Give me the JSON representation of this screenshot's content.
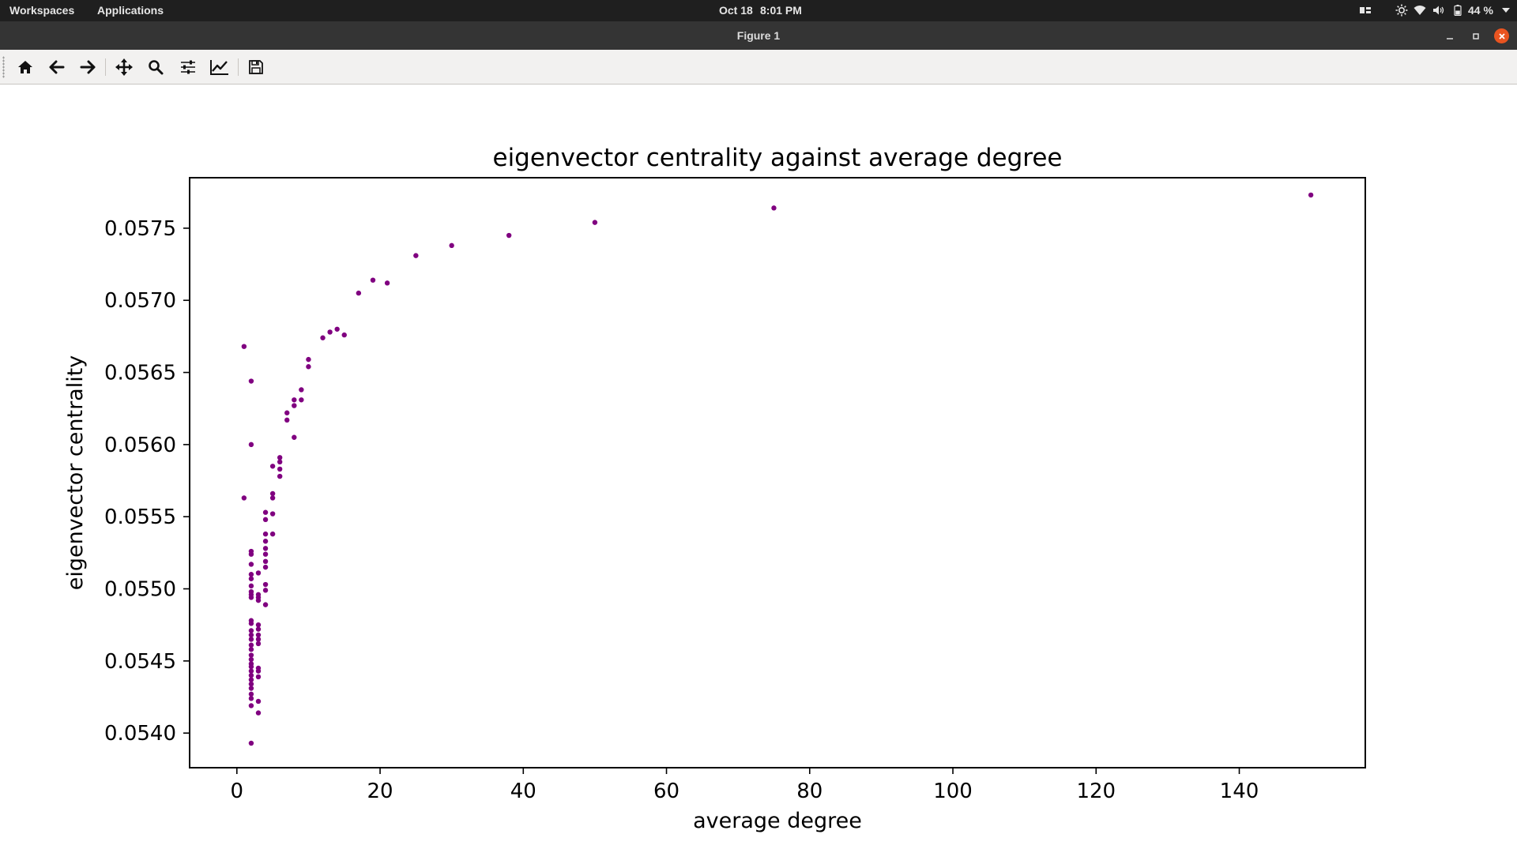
{
  "system_bar": {
    "workspaces": "Workspaces",
    "applications": "Applications",
    "date": "Oct 18",
    "time": "8:01 PM",
    "battery": "44 %",
    "tray_icons": [
      "layout-icon",
      "brightness-icon",
      "wifi-icon",
      "volume-icon",
      "battery-icon",
      "dropdown-icon"
    ]
  },
  "window": {
    "title": "Figure 1",
    "controls": [
      "minimize-icon",
      "maximize-icon",
      "close-icon"
    ]
  },
  "toolbar": {
    "buttons": [
      "home-icon",
      "back-icon",
      "forward-icon",
      "pan-icon",
      "zoom-icon",
      "configure-subplots-icon",
      "edit-axis-icon",
      "save-icon"
    ]
  },
  "colors": {
    "marker": "#800080",
    "system_bar": "#1f1f1f",
    "title_bar": "#343434",
    "close_button": "#e95420"
  },
  "chart_data": {
    "type": "scatter",
    "title": "eigenvector centrality against average degree",
    "xlabel": "average degree",
    "ylabel": "eigenvector centrality",
    "xlim": [
      -6.6,
      157.6
    ],
    "ylim": [
      0.05376,
      0.05785
    ],
    "xticks": [
      0,
      20,
      40,
      60,
      80,
      100,
      120,
      140
    ],
    "yticks": [
      0.054,
      0.0545,
      0.055,
      0.0555,
      0.056,
      0.0565,
      0.057,
      0.0575
    ],
    "xtick_labels": [
      "0",
      "20",
      "40",
      "60",
      "80",
      "100",
      "120",
      "140"
    ],
    "ytick_labels": [
      "0.0540",
      "0.0545",
      "0.0550",
      "0.0555",
      "0.0560",
      "0.0565",
      "0.0570",
      "0.0575"
    ],
    "grid": false,
    "legend": "none",
    "series": [
      {
        "color": "#800080",
        "points": [
          [
            1,
            0.05668
          ],
          [
            1,
            0.05563
          ],
          [
            2,
            0.05644
          ],
          [
            2,
            0.056
          ],
          [
            2,
            0.05526
          ],
          [
            2,
            0.05524
          ],
          [
            2,
            0.05517
          ],
          [
            2,
            0.0551
          ],
          [
            2,
            0.05507
          ],
          [
            2,
            0.05502
          ],
          [
            2,
            0.05498
          ],
          [
            2,
            0.05496
          ],
          [
            2,
            0.05494
          ],
          [
            2,
            0.05478
          ],
          [
            2,
            0.05476
          ],
          [
            2,
            0.05471
          ],
          [
            2,
            0.05468
          ],
          [
            2,
            0.05465
          ],
          [
            2,
            0.05461
          ],
          [
            2,
            0.05458
          ],
          [
            2,
            0.05454
          ],
          [
            2,
            0.05451
          ],
          [
            2,
            0.05448
          ],
          [
            2,
            0.05446
          ],
          [
            2,
            0.05443
          ],
          [
            2,
            0.0544
          ],
          [
            2,
            0.05437
          ],
          [
            2,
            0.05434
          ],
          [
            2,
            0.05431
          ],
          [
            2,
            0.05427
          ],
          [
            2,
            0.05424
          ],
          [
            2,
            0.05419
          ],
          [
            2,
            0.05393
          ],
          [
            3,
            0.05511
          ],
          [
            3,
            0.05496
          ],
          [
            3,
            0.05494
          ],
          [
            3,
            0.05492
          ],
          [
            3,
            0.05475
          ],
          [
            3,
            0.05472
          ],
          [
            3,
            0.05468
          ],
          [
            3,
            0.05465
          ],
          [
            3,
            0.05462
          ],
          [
            3,
            0.05445
          ],
          [
            3,
            0.05443
          ],
          [
            3,
            0.05439
          ],
          [
            3,
            0.05422
          ],
          [
            3,
            0.05414
          ],
          [
            4,
            0.05553
          ],
          [
            4,
            0.05548
          ],
          [
            4,
            0.05538
          ],
          [
            4,
            0.05533
          ],
          [
            4,
            0.05528
          ],
          [
            4,
            0.05524
          ],
          [
            4,
            0.05519
          ],
          [
            4,
            0.05515
          ],
          [
            4,
            0.05503
          ],
          [
            4,
            0.05499
          ],
          [
            4,
            0.05489
          ],
          [
            5,
            0.05585
          ],
          [
            5,
            0.05566
          ],
          [
            5,
            0.05563
          ],
          [
            5,
            0.05552
          ],
          [
            5,
            0.05538
          ],
          [
            6,
            0.05591
          ],
          [
            6,
            0.05588
          ],
          [
            6,
            0.05583
          ],
          [
            6,
            0.05578
          ],
          [
            7,
            0.05622
          ],
          [
            7,
            0.05617
          ],
          [
            8,
            0.05631
          ],
          [
            8,
            0.05627
          ],
          [
            8,
            0.05605
          ],
          [
            9,
            0.05638
          ],
          [
            9,
            0.05631
          ],
          [
            10,
            0.05659
          ],
          [
            10,
            0.05654
          ],
          [
            12,
            0.05674
          ],
          [
            13,
            0.05678
          ],
          [
            14,
            0.0568
          ],
          [
            15,
            0.05676
          ],
          [
            17,
            0.05705
          ],
          [
            19,
            0.05714
          ],
          [
            21,
            0.05712
          ],
          [
            25,
            0.05731
          ],
          [
            30,
            0.05738
          ],
          [
            38,
            0.05745
          ],
          [
            50,
            0.05754
          ],
          [
            75,
            0.05764
          ],
          [
            150,
            0.05773
          ]
        ]
      }
    ]
  }
}
